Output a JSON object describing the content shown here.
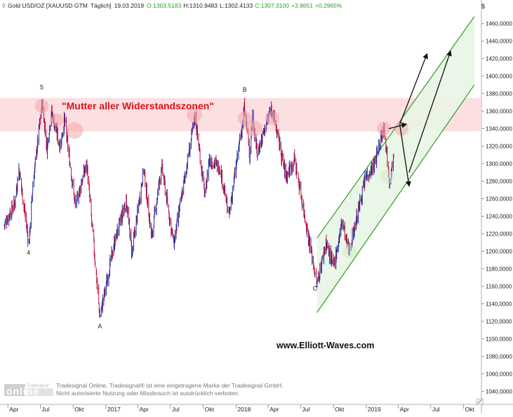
{
  "header": {
    "symbol": "Gold USD/OZ [XAUUSD GTM",
    "period": "Täglich]",
    "date": "19.03.2019",
    "open": "O:1303.5183",
    "high": "H:1310.9483",
    "low": "L:1302.4133",
    "close": "C:1307.3100",
    "change": "+3.8651",
    "change_pct": "+0.2965%"
  },
  "currency_label": "$",
  "annotations": {
    "resistance_label": "\"Mutter aller Widerstandszonen\"",
    "wave_5": "5",
    "wave_4": "4",
    "wave_A": "A",
    "wave_B": "B",
    "wave_C": "C",
    "website": "www.Elliott-Waves.com"
  },
  "footer": {
    "line1": "Tradesignal Online. Tradesignal® ist eine eingetragene Marke der Tradesignal GmbH.",
    "line2": "Nicht autorisierte Nutzung oder Missbrauch ist ausdrücklich verboten.",
    "logo_top": "Tradesignal",
    "logo_main": "online"
  },
  "colors": {
    "up_candle": "#1f2d9e",
    "down_candle": "#c0143c",
    "resistance_zone": "#fbd9dc",
    "channel_fill": "#e8f5e4",
    "channel_line": "#2e9e1f",
    "label_red": "#e0101c"
  },
  "chart_data": {
    "type": "candlestick",
    "title": "Gold USD/OZ [XAUUSD GTM Täglich]",
    "y_axis": {
      "unit": "$",
      "range": [
        1025,
        1475
      ],
      "ticks": [
        "1040,0000",
        "1060,0000",
        "1080,0000",
        "1100,0000",
        "1120,0000",
        "1140,0000",
        "1160,0000",
        "1180,0000",
        "1200,0000",
        "1220,0000",
        "1240,0000",
        "1260,0000",
        "1280,0000",
        "1300,0000",
        "1320,0000",
        "1340,0000",
        "1360,0000",
        "1380,0000",
        "1400,0000",
        "1420,0000",
        "1440,0000",
        "1460,0000"
      ]
    },
    "x_axis": {
      "ticks": [
        {
          "label": "Apr",
          "date": "2016-04-01"
        },
        {
          "label": "Jul",
          "date": "2016-07-01"
        },
        {
          "label": "Okt",
          "date": "2016-10-01"
        },
        {
          "label": "2017",
          "date": "2017-01-01"
        },
        {
          "label": "Apr",
          "date": "2017-04-01"
        },
        {
          "label": "Jul",
          "date": "2017-07-01"
        },
        {
          "label": "Okt",
          "date": "2017-10-01"
        },
        {
          "label": "2018",
          "date": "2018-01-01"
        },
        {
          "label": "Apr",
          "date": "2018-04-01"
        },
        {
          "label": "Jul",
          "date": "2018-07-01"
        },
        {
          "label": "Okt",
          "date": "2018-10-01"
        },
        {
          "label": "2019",
          "date": "2019-01-01"
        },
        {
          "label": "Apr",
          "date": "2019-04-01"
        },
        {
          "label": "Jul",
          "date": "2019-07-01"
        },
        {
          "label": "Okt",
          "date": "2019-10-01"
        }
      ]
    },
    "price_path": [
      [
        "2016-03-22",
        1230
      ],
      [
        "2016-04-20",
        1255
      ],
      [
        "2016-05-02",
        1295
      ],
      [
        "2016-05-30",
        1208
      ],
      [
        "2016-06-10",
        1275
      ],
      [
        "2016-07-06",
        1370
      ],
      [
        "2016-07-20",
        1318
      ],
      [
        "2016-08-01",
        1360
      ],
      [
        "2016-08-25",
        1320
      ],
      [
        "2016-09-07",
        1350
      ],
      [
        "2016-10-07",
        1252
      ],
      [
        "2016-11-08",
        1300
      ],
      [
        "2016-12-15",
        1125
      ],
      [
        "2017-01-25",
        1210
      ],
      [
        "2017-02-27",
        1258
      ],
      [
        "2017-03-15",
        1198
      ],
      [
        "2017-04-17",
        1295
      ],
      [
        "2017-05-09",
        1215
      ],
      [
        "2017-06-06",
        1298
      ],
      [
        "2017-07-10",
        1208
      ],
      [
        "2017-09-08",
        1355
      ],
      [
        "2017-10-06",
        1262
      ],
      [
        "2017-10-17",
        1305
      ],
      [
        "2017-11-17",
        1295
      ],
      [
        "2017-12-12",
        1240
      ],
      [
        "2018-01-25",
        1365
      ],
      [
        "2018-02-08",
        1310
      ],
      [
        "2018-02-16",
        1355
      ],
      [
        "2018-03-01",
        1312
      ],
      [
        "2018-04-11",
        1365
      ],
      [
        "2018-05-21",
        1285
      ],
      [
        "2018-06-14",
        1305
      ],
      [
        "2018-08-16",
        1162
      ],
      [
        "2018-09-10",
        1210
      ],
      [
        "2018-10-01",
        1182
      ],
      [
        "2018-10-26",
        1235
      ],
      [
        "2018-11-13",
        1198
      ],
      [
        "2018-12-31",
        1285
      ],
      [
        "2019-01-25",
        1300
      ],
      [
        "2019-02-20",
        1345
      ],
      [
        "2019-03-07",
        1282
      ],
      [
        "2019-03-19",
        1307
      ]
    ],
    "resistance_zone": [
      1337,
      1375
    ],
    "channel": {
      "lower_line": [
        [
          "2018-08-16",
          1130
        ],
        [
          "2019-10-31",
          1390
        ]
      ],
      "upper_line": [
        [
          "2018-08-16",
          1215
        ],
        [
          "2019-10-31",
          1468
        ]
      ]
    },
    "projection_arrows": [
      {
        "from": [
          "2019-03-05",
          1340
        ],
        "to": [
          "2019-04-22",
          1345
        ]
      },
      {
        "from": [
          "2019-04-05",
          1345
        ],
        "to": [
          "2019-06-20",
          1425
        ]
      },
      {
        "from": [
          "2019-04-05",
          1345
        ],
        "to": [
          "2019-05-01",
          1275
        ]
      },
      {
        "from": [
          "2019-05-01",
          1290
        ],
        "to": [
          "2019-08-25",
          1428
        ]
      }
    ],
    "wave_labels": [
      {
        "label": "5",
        "date": "2016-07-06",
        "price": 1385
      },
      {
        "label": "4",
        "date": "2016-05-30",
        "price": 1196
      },
      {
        "label": "A",
        "date": "2016-12-15",
        "price": 1112
      },
      {
        "label": "B",
        "date": "2018-01-25",
        "price": 1382
      },
      {
        "label": "C",
        "date": "2018-08-10",
        "price": 1155
      }
    ]
  }
}
